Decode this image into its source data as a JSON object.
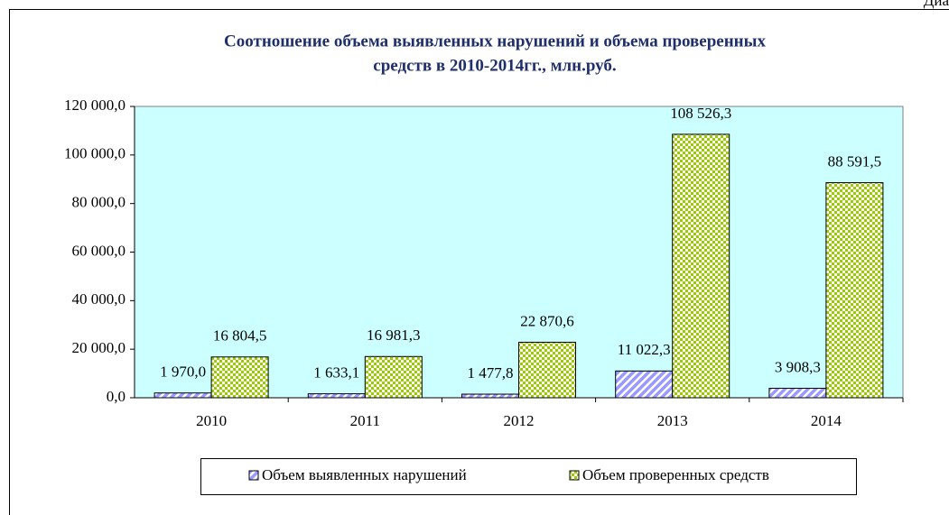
{
  "corner_label": "Диа",
  "chart_data": {
    "type": "bar",
    "title": [
      "Соотношение объема выявленных нарушений и объема проверенных",
      "средств в 2010-2014гг., млн.руб."
    ],
    "categories": [
      "2010",
      "2011",
      "2012",
      "2013",
      "2014"
    ],
    "series": [
      {
        "name": "Объем выявленных нарушений",
        "color": "#9999ff",
        "values": [
          1970.0,
          1633.1,
          1477.8,
          11022.3,
          3908.3
        ],
        "value_labels": [
          "1 970,0",
          "1 633,1",
          "1 477,8",
          "11 022,3",
          "3 908,3"
        ]
      },
      {
        "name": "Объем проверенных средств",
        "color": "#99cc00",
        "values": [
          16804.5,
          16981.3,
          22870.6,
          108526.3,
          88591.5
        ],
        "value_labels": [
          "16 804,5",
          "16 981,3",
          "22 870,6",
          "108 526,3",
          "88 591,5"
        ]
      }
    ],
    "ylim": [
      0,
      120000
    ],
    "yticks": [
      {
        "value": 0,
        "label": "0,0"
      },
      {
        "value": 20000,
        "label": "20 000,0"
      },
      {
        "value": 40000,
        "label": "40 000,0"
      },
      {
        "value": 60000,
        "label": "60 000,0"
      },
      {
        "value": 80000,
        "label": "80 000,0"
      },
      {
        "value": 100000,
        "label": "100 000,0"
      },
      {
        "value": 120000,
        "label": "120 000,0"
      }
    ],
    "legend": "bottom",
    "plot_background": "#ccffff"
  }
}
